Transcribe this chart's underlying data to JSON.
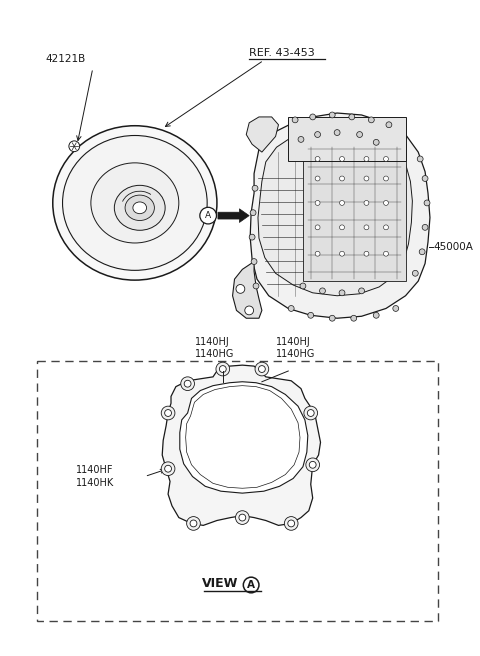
{
  "bg_color": "#ffffff",
  "line_color": "#1a1a1a",
  "fig_width": 4.8,
  "fig_height": 6.56,
  "dpi": 100,
  "labels": {
    "part_42121B": "42121B",
    "ref_43453": "REF. 43-453",
    "part_45000A": "45000A",
    "label_1140HJ_left": "1140HJ\n1140HG",
    "label_1140HJ_right": "1140HJ\n1140HG",
    "label_1140HF": "1140HF\n1140HK"
  }
}
